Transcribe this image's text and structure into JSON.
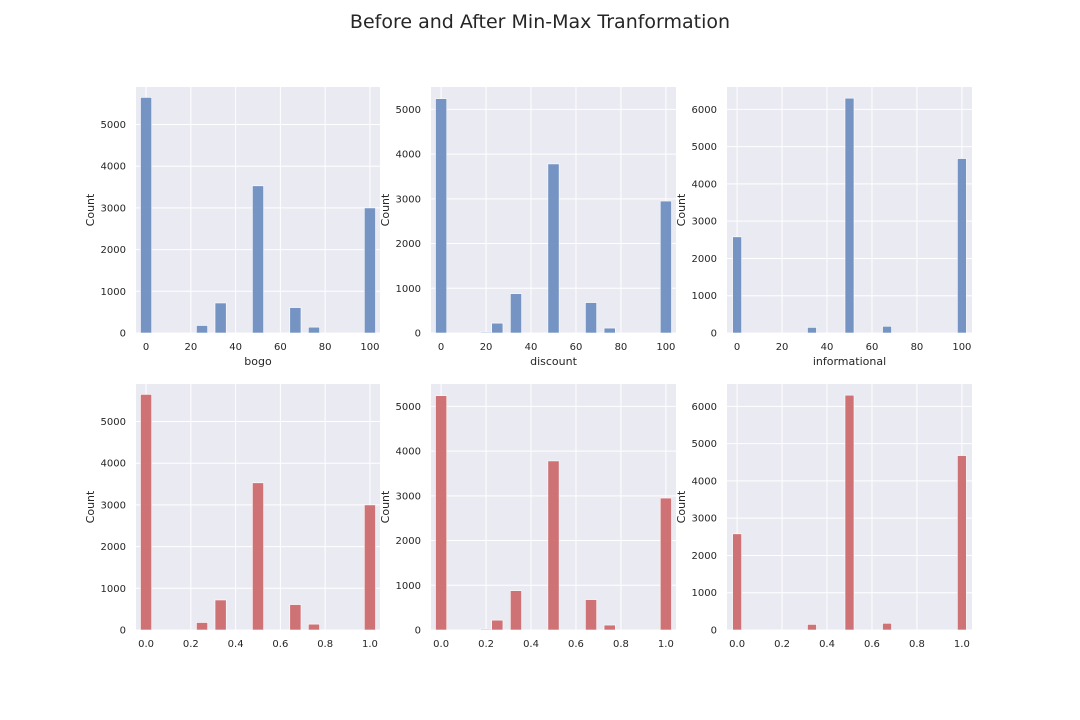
{
  "figure": {
    "title": "Before and After Min-Max Tranformation"
  },
  "colors": {
    "before": "#6f8fc0",
    "after": "#cc6b6e",
    "axes_bg": "#eaeaf2",
    "grid": "#ffffff"
  },
  "chart_data": [
    {
      "type": "bar",
      "histogram": true,
      "xlabel": "bogo",
      "ylabel": "Count",
      "xlim": [
        -4.5,
        104.5
      ],
      "ylim": [
        0,
        5900
      ],
      "xticks": [
        0,
        20,
        40,
        60,
        80,
        100
      ],
      "xtick_labels": [
        "0",
        "20",
        "40",
        "60",
        "80",
        "100"
      ],
      "yticks": [
        0,
        1000,
        2000,
        3000,
        4000,
        5000
      ],
      "bar_width": 5,
      "color": "before",
      "bins": [
        {
          "x": 0,
          "y": 5650
        },
        {
          "x": 25,
          "y": 180
        },
        {
          "x": 33.3,
          "y": 720
        },
        {
          "x": 50,
          "y": 3530
        },
        {
          "x": 66.7,
          "y": 610
        },
        {
          "x": 75,
          "y": 140
        },
        {
          "x": 100,
          "y": 3000
        }
      ]
    },
    {
      "type": "bar",
      "histogram": true,
      "xlabel": "discount",
      "ylabel": "Count",
      "xlim": [
        -4.5,
        104.5
      ],
      "ylim": [
        0,
        5500
      ],
      "xticks": [
        0,
        20,
        40,
        60,
        80,
        100
      ],
      "xtick_labels": [
        "0",
        "20",
        "40",
        "60",
        "80",
        "100"
      ],
      "yticks": [
        0,
        1000,
        2000,
        3000,
        4000,
        5000
      ],
      "bar_width": 5,
      "color": "before",
      "bins": [
        {
          "x": 0,
          "y": 5240
        },
        {
          "x": 20,
          "y": 20
        },
        {
          "x": 25,
          "y": 220
        },
        {
          "x": 33.3,
          "y": 880
        },
        {
          "x": 50,
          "y": 3780
        },
        {
          "x": 66.7,
          "y": 680
        },
        {
          "x": 75,
          "y": 110
        },
        {
          "x": 100,
          "y": 2950
        }
      ]
    },
    {
      "type": "bar",
      "histogram": true,
      "xlabel": "informational",
      "ylabel": "Count",
      "xlim": [
        -4.5,
        104.5
      ],
      "ylim": [
        0,
        6600
      ],
      "xticks": [
        0,
        20,
        40,
        60,
        80,
        100
      ],
      "xtick_labels": [
        "0",
        "20",
        "40",
        "60",
        "80",
        "100"
      ],
      "yticks": [
        0,
        1000,
        2000,
        3000,
        4000,
        5000,
        6000
      ],
      "bar_width": 4,
      "color": "before",
      "bins": [
        {
          "x": 0,
          "y": 2580
        },
        {
          "x": 33.3,
          "y": 150
        },
        {
          "x": 50,
          "y": 6300
        },
        {
          "x": 66.7,
          "y": 180
        },
        {
          "x": 100,
          "y": 4680
        }
      ]
    },
    {
      "type": "bar",
      "histogram": true,
      "xlabel": "",
      "ylabel": "Count",
      "xlim": [
        -0.045,
        1.045
      ],
      "ylim": [
        0,
        5900
      ],
      "xticks": [
        0,
        0.2,
        0.4,
        0.6,
        0.8,
        1.0
      ],
      "xtick_labels": [
        "0.0",
        "0.2",
        "0.4",
        "0.6",
        "0.8",
        "1.0"
      ],
      "yticks": [
        0,
        1000,
        2000,
        3000,
        4000,
        5000
      ],
      "bar_width": 0.05,
      "color": "after",
      "bins": [
        {
          "x": 0,
          "y": 5650
        },
        {
          "x": 0.25,
          "y": 180
        },
        {
          "x": 0.333,
          "y": 720
        },
        {
          "x": 0.5,
          "y": 3530
        },
        {
          "x": 0.667,
          "y": 610
        },
        {
          "x": 0.75,
          "y": 140
        },
        {
          "x": 1.0,
          "y": 3000
        }
      ]
    },
    {
      "type": "bar",
      "histogram": true,
      "xlabel": "",
      "ylabel": "Count",
      "xlim": [
        -0.045,
        1.045
      ],
      "ylim": [
        0,
        5500
      ],
      "xticks": [
        0,
        0.2,
        0.4,
        0.6,
        0.8,
        1.0
      ],
      "xtick_labels": [
        "0.0",
        "0.2",
        "0.4",
        "0.6",
        "0.8",
        "1.0"
      ],
      "yticks": [
        0,
        1000,
        2000,
        3000,
        4000,
        5000
      ],
      "bar_width": 0.05,
      "color": "after",
      "bins": [
        {
          "x": 0,
          "y": 5240
        },
        {
          "x": 0.2,
          "y": 20
        },
        {
          "x": 0.25,
          "y": 220
        },
        {
          "x": 0.333,
          "y": 880
        },
        {
          "x": 0.5,
          "y": 3780
        },
        {
          "x": 0.667,
          "y": 680
        },
        {
          "x": 0.75,
          "y": 110
        },
        {
          "x": 1.0,
          "y": 2950
        }
      ]
    },
    {
      "type": "bar",
      "histogram": true,
      "xlabel": "",
      "ylabel": "Count",
      "xlim": [
        -0.045,
        1.045
      ],
      "ylim": [
        0,
        6600
      ],
      "xticks": [
        0,
        0.2,
        0.4,
        0.6,
        0.8,
        1.0
      ],
      "xtick_labels": [
        "0.0",
        "0.2",
        "0.4",
        "0.6",
        "0.8",
        "1.0"
      ],
      "yticks": [
        0,
        1000,
        2000,
        3000,
        4000,
        5000,
        6000
      ],
      "bar_width": 0.04,
      "color": "after",
      "bins": [
        {
          "x": 0,
          "y": 2580
        },
        {
          "x": 0.333,
          "y": 150
        },
        {
          "x": 0.5,
          "y": 6300
        },
        {
          "x": 0.667,
          "y": 180
        },
        {
          "x": 1.0,
          "y": 4680
        }
      ]
    }
  ]
}
